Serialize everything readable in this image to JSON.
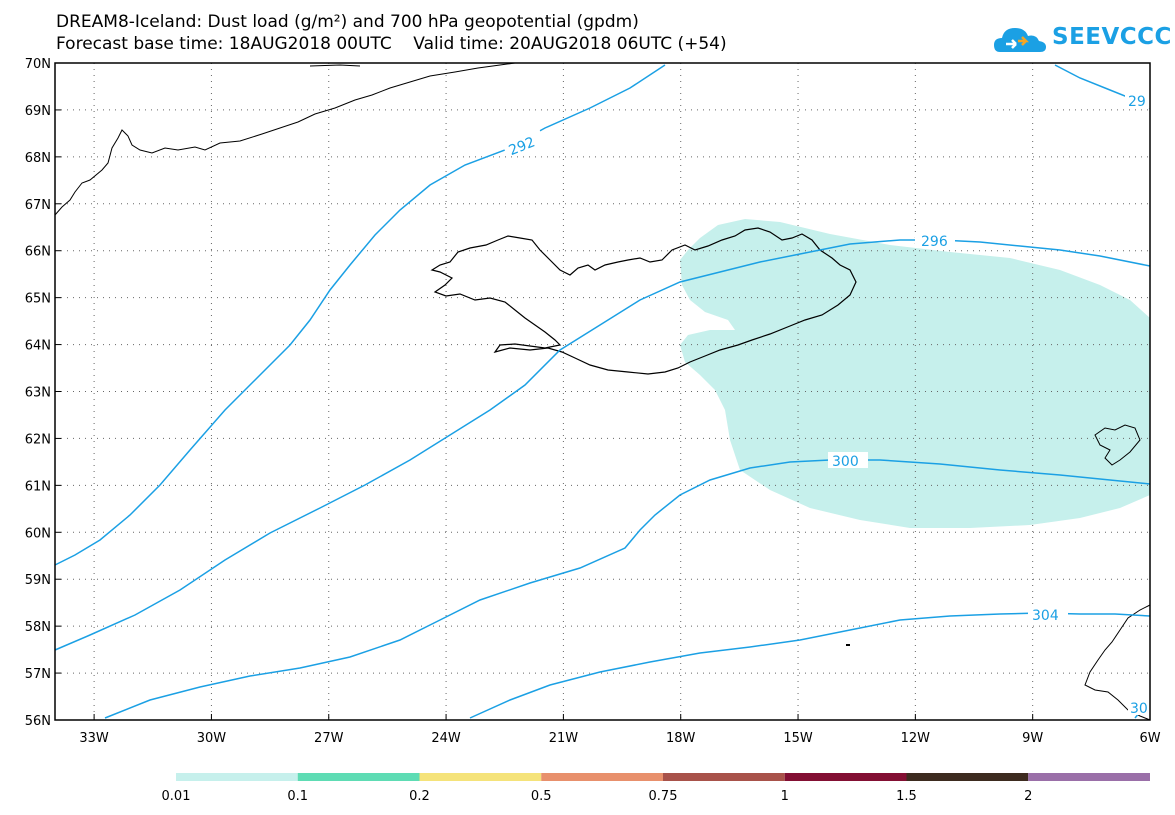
{
  "title_line1": "DREAM8-Iceland: Dust load (g/m²) and 700 hPa geopotential (gpdm)",
  "title_line2": "Forecast base time: 18AUG2018 00UTC    Valid time: 20AUG2018 06UTC (+54)",
  "logo": {
    "text": "SEEVCCC",
    "icon": "cloud-icon",
    "color": "#1ba0e4"
  },
  "map": {
    "lon_range": [
      -34,
      -6
    ],
    "lat_range": [
      56,
      70
    ],
    "lat_labels": [
      "70N",
      "69N",
      "68N",
      "67N",
      "66N",
      "65N",
      "64N",
      "63N",
      "62N",
      "61N",
      "60N",
      "59N",
      "58N",
      "57N",
      "56N"
    ],
    "lon_labels": [
      "33W",
      "30W",
      "27W",
      "24W",
      "21W",
      "18W",
      "15W",
      "12W",
      "9W",
      "6W"
    ],
    "grid": "dotted",
    "contour_color": "#1ba0e4",
    "dust_fill_color": "#c6f0ec",
    "contour_labels": [
      "292",
      "296",
      "300",
      "304",
      "29",
      "30"
    ]
  },
  "colorbar": {
    "labels": [
      "0.01",
      "0.1",
      "0.2",
      "0.5",
      "0.75",
      "1",
      "1.5",
      "2"
    ],
    "colors": [
      "#c6f0ec",
      "#5edcb4",
      "#f5e37a",
      "#e8906c",
      "#a8524a",
      "#830f33",
      "#3d2b1f",
      "#9a6fa8"
    ]
  }
}
